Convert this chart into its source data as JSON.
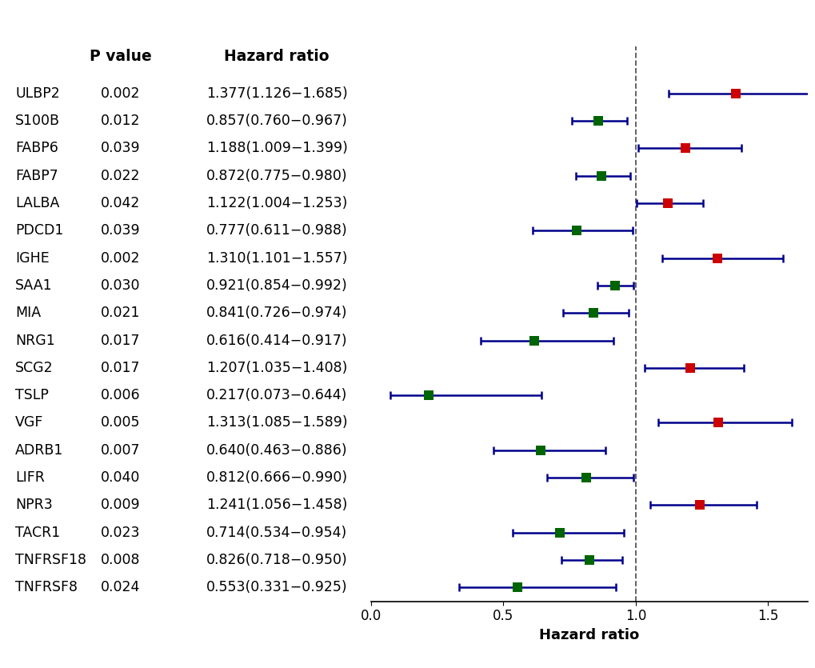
{
  "genes": [
    "ULBP2",
    "S100B",
    "FABP6",
    "FABP7",
    "LALBA",
    "PDCD1",
    "IGHE",
    "SAA1",
    "MIA",
    "NRG1",
    "SCG2",
    "TSLP",
    "VGF",
    "ADRB1",
    "LIFR",
    "NPR3",
    "TACR1",
    "TNFRSF18",
    "TNFRSF8"
  ],
  "pvalues": [
    "0.002",
    "0.012",
    "0.039",
    "0.022",
    "0.042",
    "0.039",
    "0.002",
    "0.030",
    "0.021",
    "0.017",
    "0.017",
    "0.006",
    "0.005",
    "0.007",
    "0.040",
    "0.009",
    "0.023",
    "0.008",
    "0.024"
  ],
  "hr_labels": [
    "1.377(1.126−1.685)",
    "0.857(0.760−0.967)",
    "1.188(1.009−1.399)",
    "0.872(0.775−0.980)",
    "1.122(1.004−1.253)",
    "0.777(0.611−0.988)",
    "1.310(1.101−1.557)",
    "0.921(0.854−0.992)",
    "0.841(0.726−0.974)",
    "0.616(0.414−0.917)",
    "1.207(1.035−1.408)",
    "0.217(0.073−0.644)",
    "1.313(1.085−1.589)",
    "0.640(0.463−0.886)",
    "0.812(0.666−0.990)",
    "1.241(1.056−1.458)",
    "0.714(0.534−0.954)",
    "0.826(0.718−0.950)",
    "0.553(0.331−0.925)"
  ],
  "hr": [
    1.377,
    0.857,
    1.188,
    0.872,
    1.122,
    0.777,
    1.31,
    0.921,
    0.841,
    0.616,
    1.207,
    0.217,
    1.313,
    0.64,
    0.812,
    1.241,
    0.714,
    0.826,
    0.553
  ],
  "ci_low": [
    1.126,
    0.76,
    1.009,
    0.775,
    1.004,
    0.611,
    1.101,
    0.854,
    0.726,
    0.414,
    1.035,
    0.073,
    1.085,
    0.463,
    0.666,
    1.056,
    0.534,
    0.718,
    0.331
  ],
  "ci_high": [
    1.685,
    0.967,
    1.399,
    0.98,
    1.253,
    0.988,
    1.557,
    0.992,
    0.974,
    0.917,
    1.408,
    0.644,
    1.589,
    0.886,
    0.99,
    1.458,
    0.954,
    0.95,
    0.925
  ],
  "color_above": "#cc0000",
  "color_below": "#006400",
  "line_color": "#00008B",
  "dashed_line_color": "#555555",
  "background_color": "#ffffff",
  "xmin": 0.0,
  "xmax": 1.65,
  "xticks": [
    0.0,
    0.5,
    1.0,
    1.5
  ],
  "xticklabels": [
    "0.0",
    "0.5",
    "1.0",
    "1.5"
  ],
  "xlabel": "Hazard ratio",
  "col1_header": "P value",
  "col2_header": "Hazard ratio",
  "marker_size": 80,
  "marker_shape": "s",
  "linewidth": 1.8,
  "capsize": 3.5,
  "cap_thickness": 1.8,
  "fontsize_labels": 12.5,
  "fontsize_headers": 13.5,
  "fontsize_axis": 12,
  "fontsize_xlabel": 13
}
